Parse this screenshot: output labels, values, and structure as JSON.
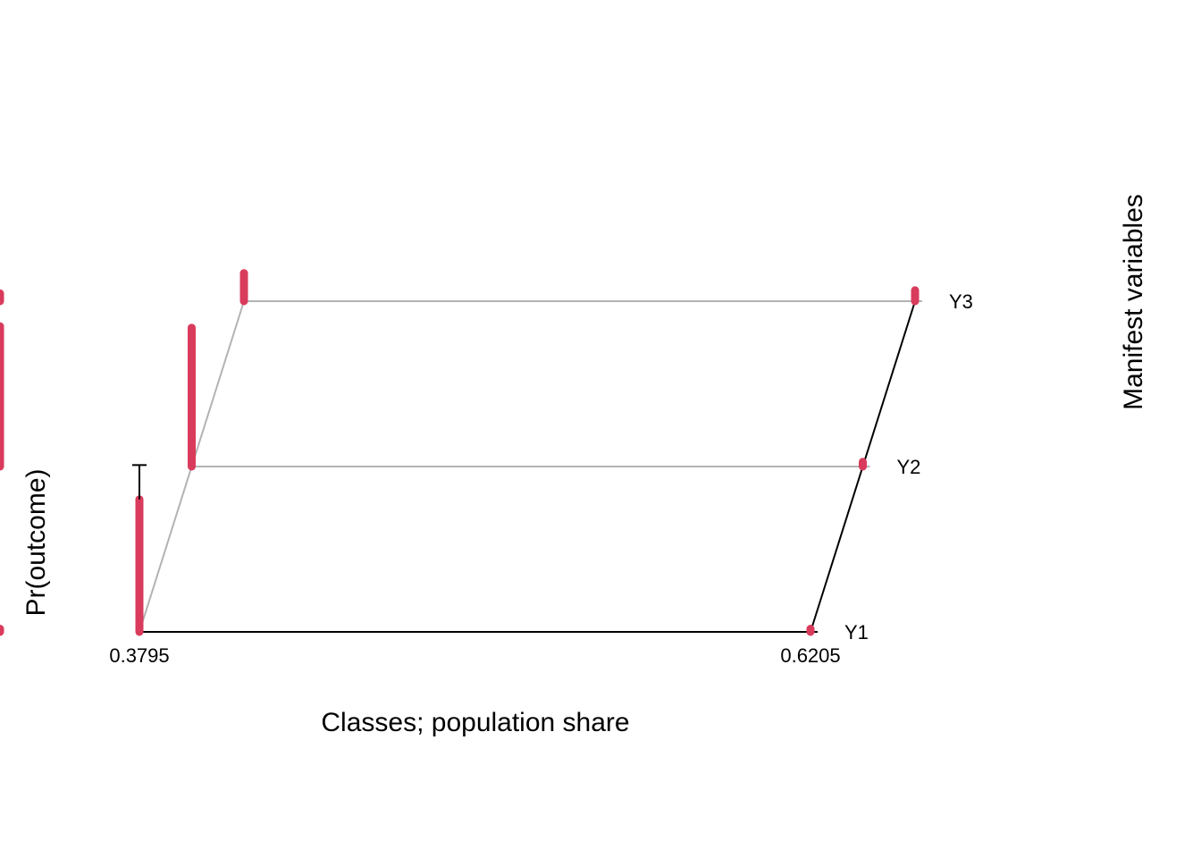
{
  "chart_data": {
    "type": "bar",
    "subtype": "3d-parallelogram",
    "title": "",
    "xlabel": "Classes; population share",
    "ylabel": "Pr(outcome)",
    "zlabel": "Manifest variables",
    "classes": [
      "0.3795",
      "0.6205"
    ],
    "variables": [
      "Y1",
      "Y2",
      "Y3"
    ],
    "ylim": [
      0,
      1
    ],
    "bar_color": "#d93b5c",
    "series": [
      {
        "values": [
          0.85,
          0.02,
          0.02
        ]
      },
      {
        "values": [
          0.89,
          0.03,
          0.9
        ]
      },
      {
        "values": [
          0.18,
          0.07,
          0.05
        ]
      }
    ],
    "error_bars": [
      {
        "class_index": 0,
        "variable_index": 0,
        "upper": 1.07
      }
    ]
  }
}
